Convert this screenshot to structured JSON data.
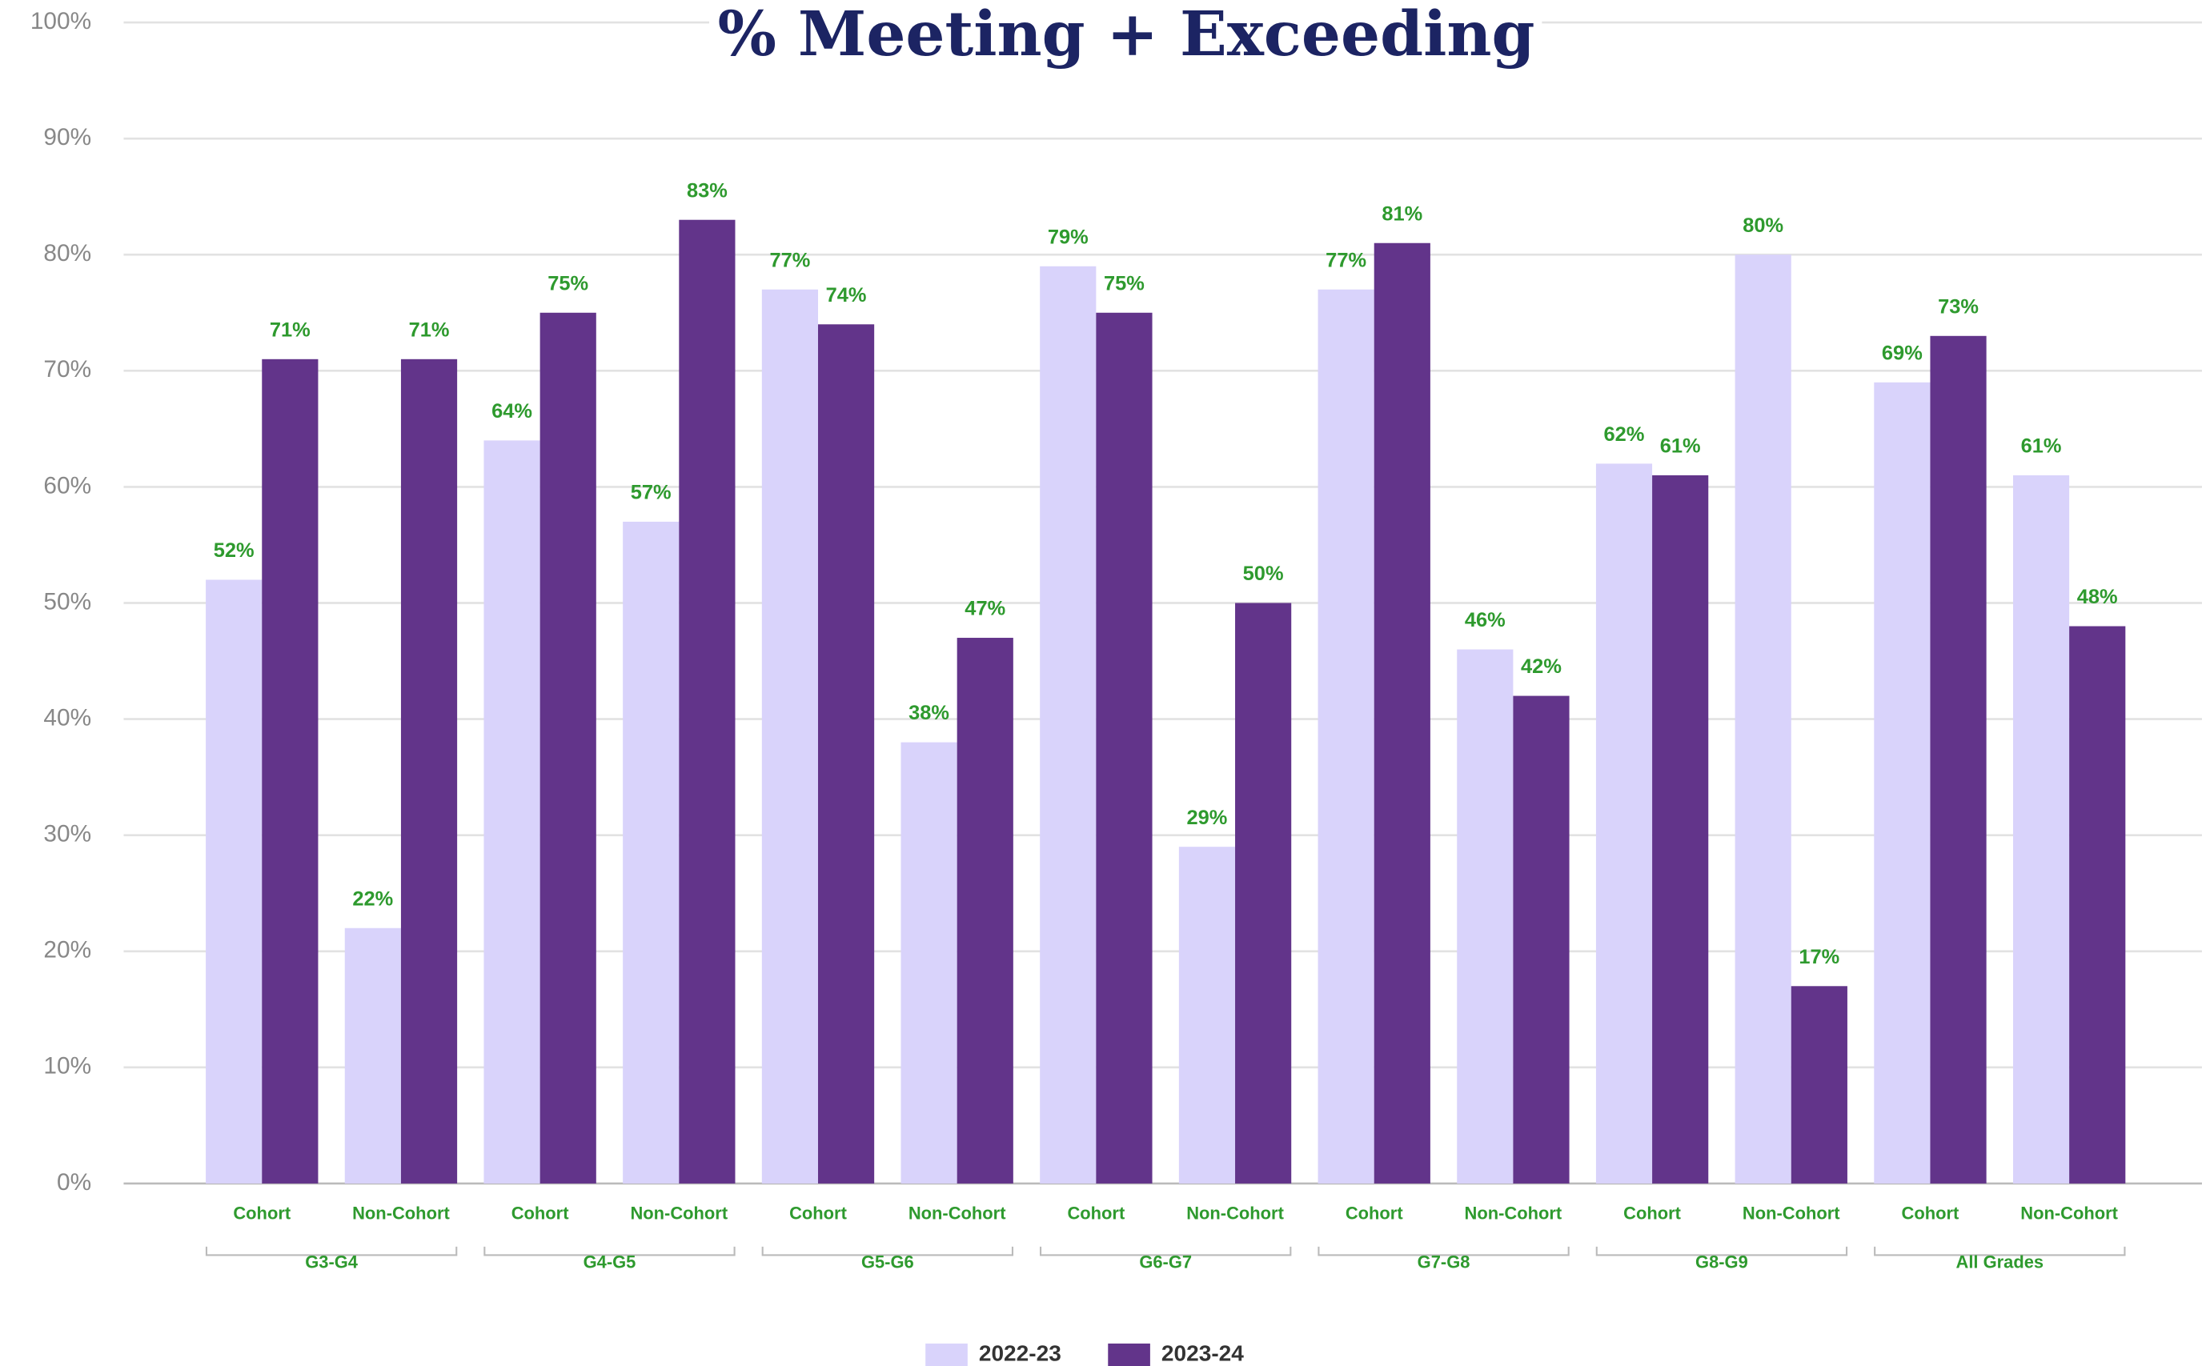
{
  "chart_data": {
    "type": "bar",
    "title": "% Meeting + Exceeding",
    "categories": [
      "Cohort",
      "Non-Cohort",
      "Cohort",
      "Non-Cohort",
      "Cohort",
      "Non-Cohort",
      "Cohort",
      "Non-Cohort",
      "Cohort",
      "Non-Cohort",
      "Cohort",
      "Non-Cohort",
      "Cohort",
      "Non-Cohort"
    ],
    "groups": [
      "G3-G4",
      "G4-G5",
      "G5-G6",
      "G6-G7",
      "G7-G8",
      "G8-G9",
      "All Grades"
    ],
    "series": [
      {
        "name": "2022-23",
        "color": "#d9d3fb",
        "values": [
          52,
          22,
          64,
          57,
          77,
          38,
          79,
          29,
          77,
          46,
          62,
          80,
          69,
          61
        ],
        "value_labels": [
          "52%",
          "22%",
          "64%",
          "57%",
          "77%",
          "38%",
          "79%",
          "29%",
          "77%",
          "46%",
          "62%",
          "80%",
          "69%",
          "61%"
        ]
      },
      {
        "name": "2023-24",
        "color": "#62348a",
        "values": [
          71,
          71,
          75,
          83,
          74,
          47,
          75,
          50,
          81,
          42,
          61,
          17,
          73,
          48
        ],
        "value_labels": [
          "71%",
          "71%",
          "75%",
          "83%",
          "74%",
          "47%",
          "75%",
          "50%",
          "81%",
          "42%",
          "61%",
          "17%",
          "73%",
          "48%"
        ]
      }
    ],
    "ylim": [
      0,
      100
    ],
    "yticks": [
      {
        "value": 0,
        "label": "0%"
      },
      {
        "value": 10,
        "label": "10%"
      },
      {
        "value": 20,
        "label": "20%"
      },
      {
        "value": 30,
        "label": "30%"
      },
      {
        "value": 40,
        "label": "40%"
      },
      {
        "value": 50,
        "label": "50%"
      },
      {
        "value": 60,
        "label": "60%"
      },
      {
        "value": 70,
        "label": "70%"
      },
      {
        "value": 80,
        "label": "80%"
      },
      {
        "value": 90,
        "label": "90%"
      },
      {
        "value": 100,
        "label": "100%"
      }
    ],
    "grid": true,
    "legend": "bottom"
  }
}
